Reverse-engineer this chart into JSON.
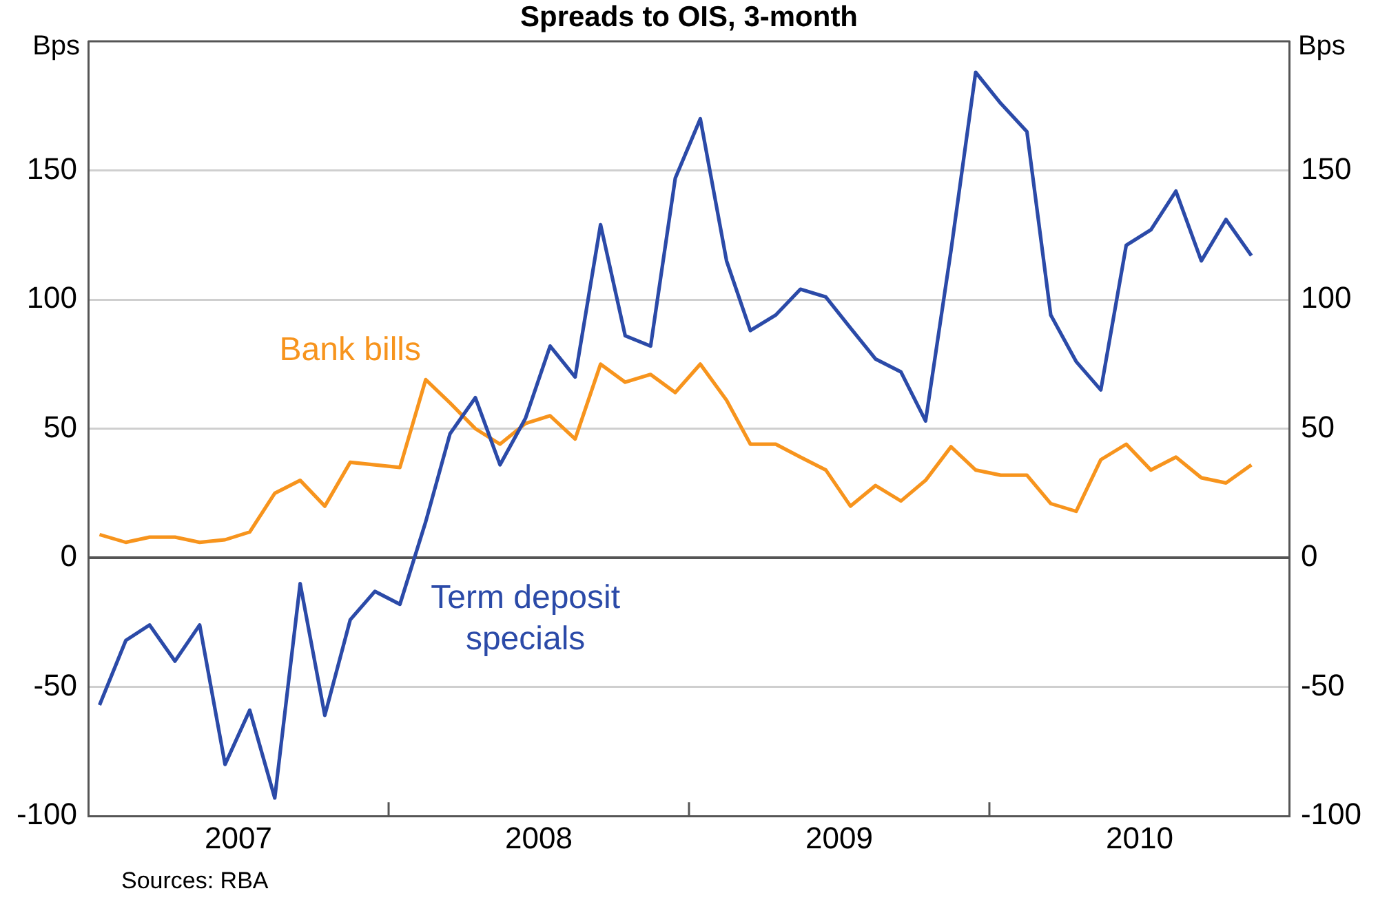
{
  "chart_data": {
    "type": "line",
    "title": "Spreads to OIS, 3-month",
    "ylabel": "Bps",
    "y2label": "Bps",
    "x": [
      "2007-01-15",
      "2007-02-15",
      "2007-03-15",
      "2007-04-15",
      "2007-05-15",
      "2007-06-15",
      "2007-07-15",
      "2007-08-15",
      "2007-09-15",
      "2007-10-15",
      "2007-11-15",
      "2007-12-15",
      "2008-01-15",
      "2008-02-15",
      "2008-03-15",
      "2008-04-15",
      "2008-05-15",
      "2008-06-15",
      "2008-07-15",
      "2008-08-15",
      "2008-09-15",
      "2008-10-15",
      "2008-11-15",
      "2008-12-15",
      "2009-01-15",
      "2009-02-15",
      "2009-03-15",
      "2009-04-15",
      "2009-05-15",
      "2009-06-15",
      "2009-07-15",
      "2009-08-15",
      "2009-09-15",
      "2009-10-15",
      "2009-11-15",
      "2009-12-15",
      "2010-01-15",
      "2010-02-15",
      "2010-03-15",
      "2010-04-15",
      "2010-05-15",
      "2010-06-15",
      "2010-07-15",
      "2010-08-15",
      "2010-09-15",
      "2010-10-15",
      "2010-11-15"
    ],
    "series": [
      {
        "name": "Term deposit specials",
        "color": "#2b4aa8",
        "values": [
          -57,
          -32,
          -26,
          -40,
          -26,
          -80,
          -59,
          -93,
          -10,
          -61,
          -24,
          -13,
          -18,
          14,
          48,
          62,
          36,
          54,
          82,
          70,
          129,
          86,
          82,
          147,
          170,
          115,
          88,
          94,
          104,
          101,
          89,
          77,
          72,
          53,
          119,
          188,
          176,
          165,
          94,
          76,
          65,
          121,
          127,
          142,
          115,
          131,
          117
        ]
      },
      {
        "name": "Bank bills",
        "color": "#f7941d",
        "values": [
          9,
          6,
          8,
          8,
          6,
          7,
          10,
          25,
          30,
          20,
          37,
          36,
          35,
          69,
          60,
          50,
          44,
          52,
          55,
          46,
          75,
          68,
          71,
          64,
          75,
          61,
          44,
          44,
          39,
          34,
          20,
          28,
          22,
          30,
          43,
          34,
          32,
          32,
          21,
          18,
          38,
          44,
          34,
          39,
          31,
          29,
          36
        ]
      }
    ],
    "xlim": [
      "2007-01-01",
      "2011-01-01"
    ],
    "xticks": [
      {
        "value": "2007-07-01",
        "label": "2007"
      },
      {
        "value": "2008-01-01",
        "label": null
      },
      {
        "value": "2008-07-01",
        "label": "2008"
      },
      {
        "value": "2009-01-01",
        "label": null
      },
      {
        "value": "2009-07-01",
        "label": "2009"
      },
      {
        "value": "2010-01-01",
        "label": null
      },
      {
        "value": "2010-07-01",
        "label": "2010"
      }
    ],
    "ylim": [
      -100,
      200
    ],
    "yticks": [
      -100,
      -50,
      0,
      50,
      100,
      150
    ],
    "y2lim": [
      -100,
      200
    ],
    "y2ticks": [
      -100,
      -50,
      0,
      50,
      100,
      150
    ],
    "grid": "y",
    "legend": false,
    "line_style": "solid",
    "marker": "none",
    "annotations": [
      "Sources: RBA"
    ]
  }
}
